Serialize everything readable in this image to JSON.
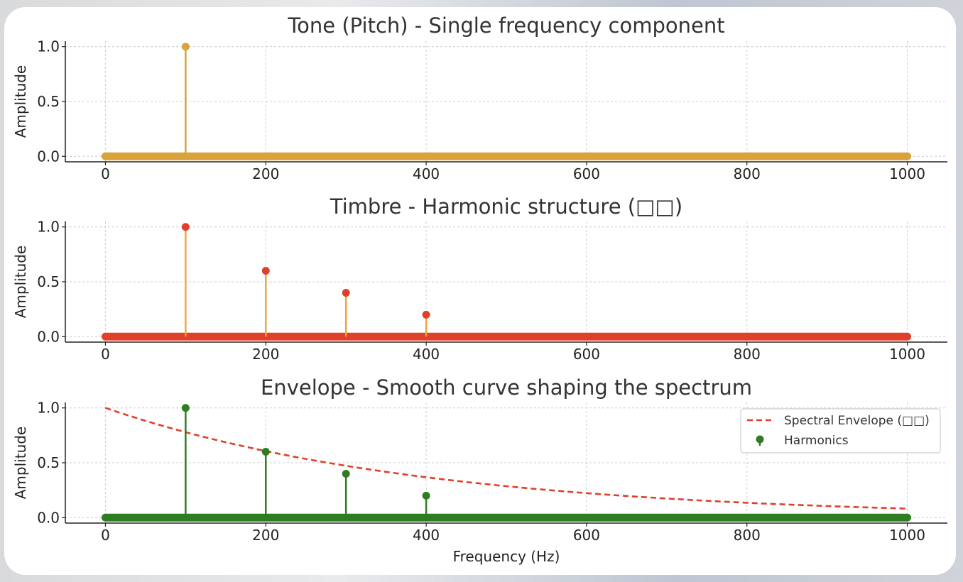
{
  "chart_data": [
    {
      "type": "stem",
      "title": "Tone (Pitch) - Single frequency component",
      "ylabel": "Amplitude",
      "xlabel": "",
      "xlim": [
        -50,
        1050
      ],
      "ylim": [
        -0.05,
        1.05
      ],
      "xticks": [
        "0",
        "200",
        "400",
        "600",
        "800",
        "1000"
      ],
      "yticks": [
        "0.0",
        "0.5",
        "1.0"
      ],
      "baseline": {
        "from": 0,
        "to": 1000,
        "value": 0
      },
      "stems": [
        {
          "x": 100,
          "y": 1.0
        }
      ],
      "colors": {
        "stem": "#d9a23a",
        "marker": "#d9a23a",
        "baseline": "#d9a23a"
      }
    },
    {
      "type": "stem",
      "title": "Timbre - Harmonic structure (□□)",
      "ylabel": "Amplitude",
      "xlabel": "",
      "xlim": [
        -50,
        1050
      ],
      "ylim": [
        -0.05,
        1.05
      ],
      "xticks": [
        "0",
        "200",
        "400",
        "600",
        "800",
        "1000"
      ],
      "yticks": [
        "0.0",
        "0.5",
        "1.0"
      ],
      "baseline": {
        "from": 0,
        "to": 1000,
        "value": 0
      },
      "stems": [
        {
          "x": 100,
          "y": 1.0
        },
        {
          "x": 200,
          "y": 0.6
        },
        {
          "x": 300,
          "y": 0.4
        },
        {
          "x": 400,
          "y": 0.2
        }
      ],
      "colors": {
        "stem": "#f0a63c",
        "marker": "#e0402a",
        "baseline": "#e0402a"
      }
    },
    {
      "type": "stem",
      "title": "Envelope - Smooth curve shaping the spectrum",
      "ylabel": "Amplitude",
      "xlabel": "Frequency (Hz)",
      "xlim": [
        -50,
        1050
      ],
      "ylim": [
        -0.05,
        1.05
      ],
      "xticks": [
        "0",
        "200",
        "400",
        "600",
        "800",
        "1000"
      ],
      "yticks": [
        "0.0",
        "0.5",
        "1.0"
      ],
      "baseline": {
        "from": 0,
        "to": 1000,
        "value": 0
      },
      "stems": [
        {
          "x": 100,
          "y": 1.0
        },
        {
          "x": 200,
          "y": 0.6
        },
        {
          "x": 300,
          "y": 0.4
        },
        {
          "x": 400,
          "y": 0.2
        }
      ],
      "envelope": {
        "x_from": 0,
        "x_to": 1000,
        "start": 1.0,
        "decay_per_hz": 0.0025
      },
      "legend": {
        "position": "upper-right",
        "items": [
          {
            "label": "Spectral Envelope (□□)",
            "kind": "dashed-line"
          },
          {
            "label": "Harmonics",
            "kind": "stem-marker"
          }
        ]
      },
      "colors": {
        "stem": "#2e7d22",
        "marker": "#2e7d22",
        "baseline": "#2e7d22",
        "envelope": "#e0402a"
      }
    }
  ]
}
